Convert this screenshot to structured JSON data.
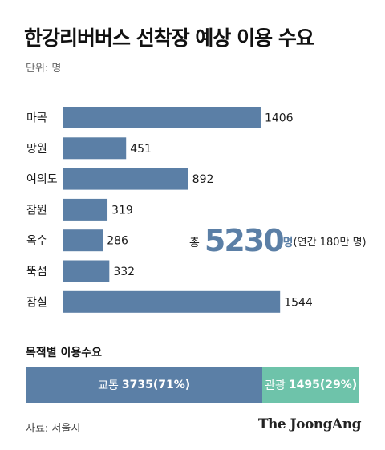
{
  "title": "한강리버버스 선착장 예상 이용 수요",
  "unit_note": "단위: 명",
  "chart_data": {
    "type": "bar",
    "orientation": "horizontal",
    "categories": [
      "마곡",
      "망원",
      "여의도",
      "잠원",
      "옥수",
      "뚝섬",
      "잠실"
    ],
    "values": [
      1406,
      451,
      892,
      319,
      286,
      332,
      1544
    ],
    "bar_color": "#5b7fa6"
  },
  "total": {
    "prefix": "총",
    "value": "5230",
    "unit": "명",
    "note": "(연간 180만 명)"
  },
  "purpose": {
    "title": "목적별 이용수요",
    "segments": [
      {
        "label": "교통",
        "value": "3735(71%)",
        "share": 0.71,
        "color": "#5b7fa6"
      },
      {
        "label": "관광",
        "value": "1495(29%)",
        "share": 0.29,
        "color": "#6ec3aa"
      }
    ]
  },
  "source": "자료: 서울시",
  "brand": "The JoongAng"
}
